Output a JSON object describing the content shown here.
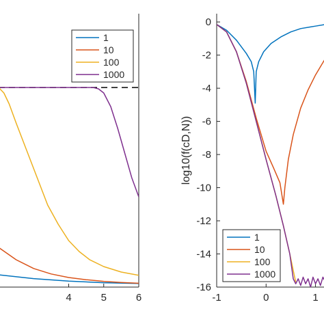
{
  "chart_data": [
    {
      "type": "line",
      "panel": "left",
      "title": "",
      "xlabel": "",
      "ylabel": "",
      "xlim": [
        2,
        6
      ],
      "ylim": [
        0,
        1
      ],
      "x_ticks": [
        4,
        5,
        6
      ],
      "x_tick_labels": [
        "4",
        "5",
        "6"
      ],
      "grid": false,
      "legend_position": "top-right",
      "reference_line": {
        "y": 0.73,
        "style": "dashed",
        "color": "#000000"
      },
      "series": [
        {
          "name": "1",
          "color": "#0072BD",
          "points": [
            [
              2,
              0.045
            ],
            [
              3,
              0.031
            ],
            [
              4,
              0.022
            ],
            [
              5,
              0.016
            ],
            [
              6,
              0.013
            ]
          ]
        },
        {
          "name": "10",
          "color": "#D95319",
          "points": [
            [
              2,
              0.145
            ],
            [
              2.5,
              0.1
            ],
            [
              3,
              0.068
            ],
            [
              3.5,
              0.048
            ],
            [
              4,
              0.035
            ],
            [
              4.5,
              0.027
            ],
            [
              5,
              0.021
            ],
            [
              5.5,
              0.017
            ],
            [
              6,
              0.014
            ]
          ]
        },
        {
          "name": "100",
          "color": "#EDB120",
          "points": [
            [
              2,
              0.73
            ],
            [
              2.15,
              0.71
            ],
            [
              2.3,
              0.67
            ],
            [
              2.5,
              0.6
            ],
            [
              2.8,
              0.5
            ],
            [
              3.1,
              0.4
            ],
            [
              3.4,
              0.3
            ],
            [
              3.7,
              0.23
            ],
            [
              4,
              0.17
            ],
            [
              4.3,
              0.13
            ],
            [
              4.6,
              0.1
            ],
            [
              5,
              0.075
            ],
            [
              5.5,
              0.055
            ],
            [
              6,
              0.043
            ]
          ]
        },
        {
          "name": "1000",
          "color": "#7E2F8E",
          "points": [
            [
              2,
              0.73
            ],
            [
              4.7,
              0.73
            ],
            [
              4.85,
              0.725
            ],
            [
              5,
              0.71
            ],
            [
              5.2,
              0.66
            ],
            [
              5.4,
              0.58
            ],
            [
              5.6,
              0.49
            ],
            [
              5.8,
              0.4
            ],
            [
              6,
              0.33
            ]
          ]
        }
      ]
    },
    {
      "type": "line",
      "panel": "right",
      "title": "",
      "xlabel": "",
      "ylabel": "log10(f(cD,N))",
      "xlim": [
        -1,
        1.2
      ],
      "ylim": [
        -16,
        0.5
      ],
      "x_ticks": [
        -1,
        0,
        1
      ],
      "y_ticks": [
        0,
        -2,
        -4,
        -6,
        -8,
        -10,
        -12,
        -14,
        -16
      ],
      "grid": false,
      "legend_position": "bottom-left",
      "series": [
        {
          "name": "1",
          "color": "#0072BD",
          "points": [
            [
              -1,
              -0.15
            ],
            [
              -0.8,
              -0.5
            ],
            [
              -0.6,
              -1.1
            ],
            [
              -0.4,
              -1.9
            ],
            [
              -0.3,
              -2.4
            ],
            [
              -0.25,
              -3.0
            ],
            [
              -0.22,
              -4.9
            ],
            [
              -0.2,
              -3.0
            ],
            [
              -0.15,
              -2.4
            ],
            [
              -0.05,
              -1.8
            ],
            [
              0.1,
              -1.3
            ],
            [
              0.3,
              -0.9
            ],
            [
              0.5,
              -0.6
            ],
            [
              0.7,
              -0.4
            ],
            [
              0.9,
              -0.3
            ],
            [
              1.0,
              -0.25
            ],
            [
              1.2,
              -0.15
            ]
          ]
        },
        {
          "name": "10",
          "color": "#D95319",
          "points": [
            [
              -1,
              -0.15
            ],
            [
              -0.8,
              -0.6
            ],
            [
              -0.6,
              -1.8
            ],
            [
              -0.4,
              -3.6
            ],
            [
              -0.2,
              -5.8
            ],
            [
              0,
              -7.8
            ],
            [
              0.15,
              -8.8
            ],
            [
              0.28,
              -9.7
            ],
            [
              0.35,
              -11.0
            ],
            [
              0.38,
              -10.0
            ],
            [
              0.45,
              -8.3
            ],
            [
              0.55,
              -6.8
            ],
            [
              0.7,
              -5.2
            ],
            [
              0.85,
              -4.1
            ],
            [
              1.0,
              -3.2
            ],
            [
              1.2,
              -2.2
            ]
          ]
        },
        {
          "name": "100",
          "color": "#EDB120",
          "points": [
            [
              -1,
              -0.15
            ],
            [
              -0.8,
              -0.6
            ],
            [
              -0.6,
              -1.8
            ],
            [
              -0.4,
              -3.7
            ],
            [
              -0.2,
              -6.0
            ],
            [
              0,
              -8.3
            ],
            [
              0.2,
              -10.5
            ],
            [
              0.35,
              -12.3
            ],
            [
              0.48,
              -14.0
            ],
            [
              0.6,
              -15.7
            ]
          ]
        },
        {
          "name": "1000",
          "color": "#7E2F8E",
          "points": [
            [
              -1,
              -0.15
            ],
            [
              -0.8,
              -0.6
            ],
            [
              -0.6,
              -1.8
            ],
            [
              -0.4,
              -3.7
            ],
            [
              -0.2,
              -6.0
            ],
            [
              0,
              -8.3
            ],
            [
              0.2,
              -10.5
            ],
            [
              0.35,
              -12.3
            ],
            [
              0.48,
              -14.0
            ],
            [
              0.55,
              -15.5
            ],
            [
              0.6,
              -15.8
            ],
            [
              0.65,
              -15.5
            ],
            [
              0.7,
              -15.9
            ],
            [
              0.75,
              -15.4
            ],
            [
              0.8,
              -15.8
            ],
            [
              0.85,
              -15.5
            ],
            [
              0.9,
              -16.0
            ],
            [
              0.95,
              -15.4
            ],
            [
              1.0,
              -15.8
            ],
            [
              1.05,
              -15.5
            ],
            [
              1.1,
              -15.9
            ],
            [
              1.15,
              -15.4
            ],
            [
              1.2,
              -15.7
            ]
          ]
        }
      ]
    }
  ]
}
